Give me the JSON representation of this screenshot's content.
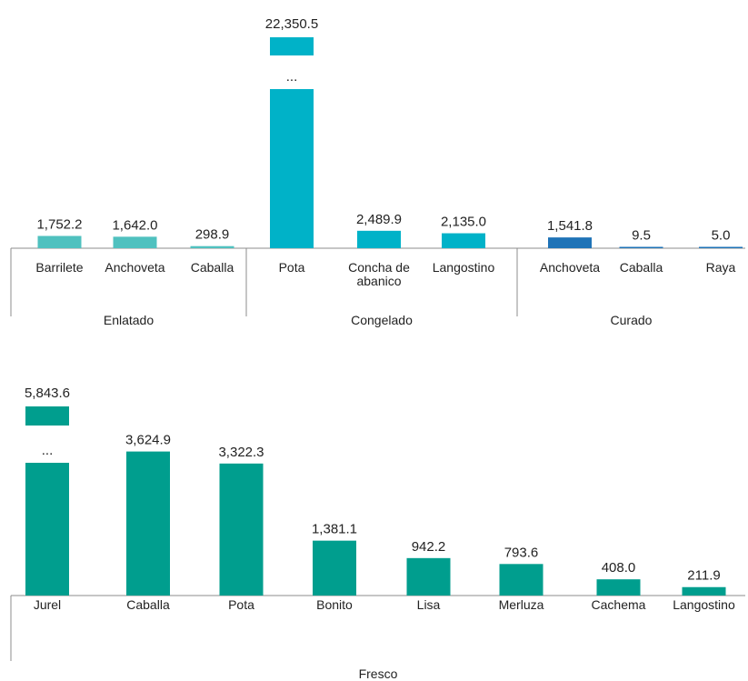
{
  "chart_data": [
    {
      "type": "bar",
      "title": "",
      "ylabel": "",
      "break_marker": "...",
      "groups": [
        {
          "name": "Enlatado",
          "color": "#4fc1bf",
          "bars": [
            {
              "category": [
                "Barrilete"
              ],
              "value": 1752.2,
              "label": "1,752.2"
            },
            {
              "category": [
                "Anchoveta"
              ],
              "value": 1642.0,
              "label": "1,642.0"
            },
            {
              "category": [
                "Caballa"
              ],
              "value": 298.9,
              "label": "298.9"
            }
          ]
        },
        {
          "name": "Congelado",
          "color": "#00b2c8",
          "bars": [
            {
              "category": [
                "Pota"
              ],
              "value": 22350.5,
              "label": "22,350.5",
              "broken": true
            },
            {
              "category": [
                "Concha de",
                "abanico"
              ],
              "value": 2489.9,
              "label": "2,489.9"
            },
            {
              "category": [
                "Langostino"
              ],
              "value": 2135.0,
              "label": "2,135.0"
            }
          ]
        },
        {
          "name": "Curado",
          "color": "#1f73b7",
          "bars": [
            {
              "category": [
                "Anchoveta"
              ],
              "value": 1541.8,
              "label": "1,541.8"
            },
            {
              "category": [
                "Caballa"
              ],
              "value": 9.5,
              "label": "9.5"
            },
            {
              "category": [
                "Raya"
              ],
              "value": 5.0,
              "label": "5.0"
            }
          ]
        }
      ]
    },
    {
      "type": "bar",
      "title": "",
      "ylabel": "",
      "break_marker": "...",
      "groups": [
        {
          "name": "Fresco",
          "color": "#009e8e",
          "bars": [
            {
              "category": [
                "Jurel"
              ],
              "value": 5843.6,
              "label": "5,843.6",
              "broken": true
            },
            {
              "category": [
                "Caballa"
              ],
              "value": 3624.9,
              "label": "3,624.9"
            },
            {
              "category": [
                "Pota"
              ],
              "value": 3322.3,
              "label": "3,322.3"
            },
            {
              "category": [
                "Bonito"
              ],
              "value": 1381.1,
              "label": "1,381.1"
            },
            {
              "category": [
                "Lisa"
              ],
              "value": 942.2,
              "label": "942.2"
            },
            {
              "category": [
                "Merluza"
              ],
              "value": 793.6,
              "label": "793.6"
            },
            {
              "category": [
                "Cachema"
              ],
              "value": 408.0,
              "label": "408.0"
            },
            {
              "category": [
                "Langostino"
              ],
              "value": 211.9,
              "label": "211.9"
            }
          ]
        }
      ]
    }
  ]
}
